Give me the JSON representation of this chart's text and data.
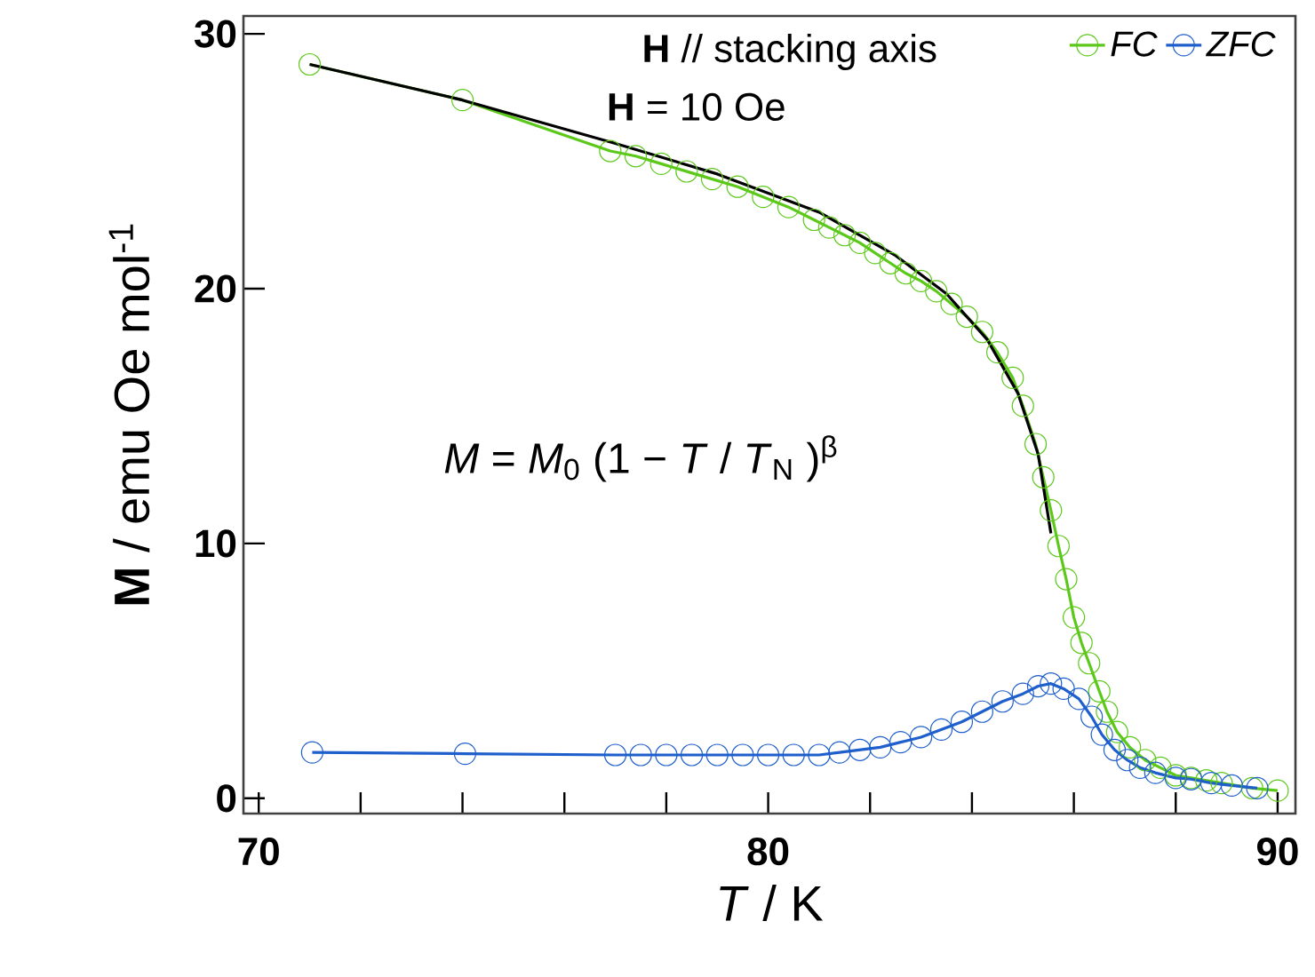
{
  "chart_data": {
    "type": "line",
    "xlabel": "*T* / K",
    "ylabel": "**M** / emu Oe mol$^{-1}$",
    "annotations": [
      "**H** //  stacking axis",
      "**H** = 10 Oe",
      "*M* = *M*$_{0}$ (1 − *T* / *T*$_{N}$ )$^{β}$"
    ],
    "xlim": [
      69.7,
      90.35
    ],
    "ylim": [
      -0.6,
      30.7
    ],
    "xticks": [
      70,
      {
        "value": 72,
        "label": null
      },
      {
        "value": 74,
        "label": null
      },
      {
        "value": 76,
        "label": null
      },
      {
        "value": 78,
        "label": null
      },
      80,
      {
        "value": 82,
        "label": null
      },
      {
        "value": 84,
        "label": null
      },
      {
        "value": 86,
        "label": null
      },
      {
        "value": 88,
        "label": null
      },
      90
    ],
    "yticks": [
      0,
      10,
      20,
      30
    ],
    "marker": "circle",
    "legend": "top right",
    "grid": false,
    "series": [
      {
        "name": "*FC*",
        "color": "#5cc81a",
        "x": [
          71,
          74,
          76.9,
          77.4,
          77.9,
          78.4,
          78.9,
          79.4,
          79.9,
          80.4,
          80.9,
          81.2,
          81.5,
          81.8,
          82.1,
          82.4,
          82.7,
          83.0,
          83.3,
          83.6,
          83.9,
          84.2,
          84.5,
          84.8,
          85.0,
          85.25,
          85.4,
          85.55,
          85.7,
          85.85,
          86.0,
          86.15,
          86.3,
          86.5,
          86.65,
          86.85,
          87.1,
          87.4,
          87.7,
          88.0,
          88.3,
          88.6,
          88.9,
          89.5,
          90.0
        ],
        "values": [
          28.8,
          27.4,
          25.4,
          25.2,
          24.9,
          24.6,
          24.3,
          24.0,
          23.6,
          23.2,
          22.7,
          22.4,
          22.1,
          21.8,
          21.4,
          21.0,
          20.6,
          20.3,
          19.9,
          19.4,
          18.9,
          18.3,
          17.5,
          16.5,
          15.4,
          13.9,
          12.6,
          11.3,
          9.9,
          8.6,
          7.1,
          6.1,
          5.3,
          4.2,
          3.4,
          2.6,
          2.0,
          1.5,
          1.2,
          0.9,
          0.8,
          0.7,
          0.6,
          0.4,
          0.3
        ]
      },
      {
        "name": "*ZFC*",
        "color": "#1f5fcc",
        "x": [
          71.05,
          74.05,
          77,
          77.5,
          78,
          78.5,
          79,
          79.5,
          80,
          80.5,
          81,
          81.4,
          81.8,
          82.2,
          82.6,
          83,
          83.4,
          83.8,
          84.2,
          84.6,
          85,
          85.3,
          85.55,
          85.8,
          86.1,
          86.35,
          86.55,
          86.8,
          87.05,
          87.3,
          87.6,
          88,
          88.3,
          88.7,
          89.1,
          89.6
        ],
        "values": [
          1.8,
          1.75,
          1.7,
          1.7,
          1.7,
          1.7,
          1.7,
          1.7,
          1.7,
          1.7,
          1.7,
          1.8,
          1.9,
          2.0,
          2.2,
          2.4,
          2.7,
          3.0,
          3.4,
          3.8,
          4.1,
          4.4,
          4.5,
          4.3,
          3.9,
          3.2,
          2.5,
          1.9,
          1.5,
          1.2,
          1.0,
          0.8,
          0.75,
          0.6,
          0.5,
          0.4
        ]
      },
      {
        "color": "#000000",
        "marker": "none",
        "x": [
          71,
          74,
          77,
          79,
          81,
          82.5,
          83.5,
          84.3,
          84.9,
          85.3,
          85.55
        ],
        "values": [
          28.8,
          27.4,
          25.7,
          24.5,
          23.0,
          21.3,
          19.8,
          18.0,
          15.9,
          13.5,
          10.4
        ]
      }
    ]
  }
}
